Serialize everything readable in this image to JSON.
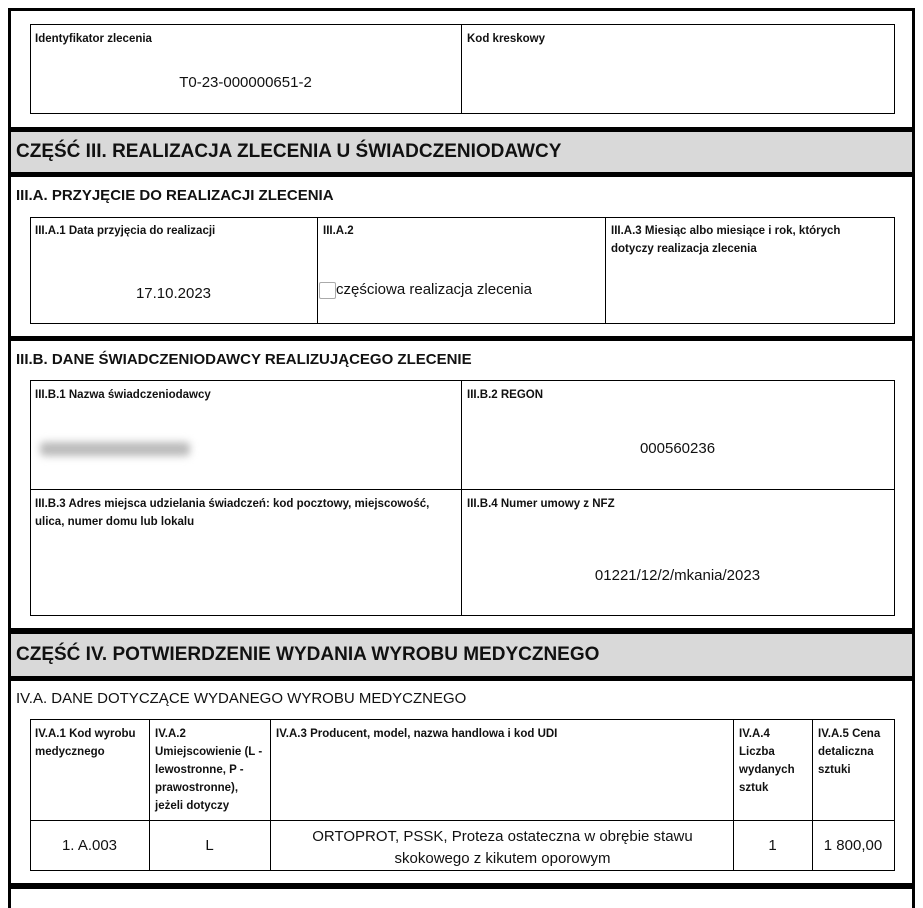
{
  "header_box": {
    "order_id_label": "Identyfikator zlecenia",
    "order_id_value": "T0-23-000000651-2",
    "barcode_label": "Kod kreskowy"
  },
  "part3": {
    "title": "CZĘŚĆ III. REALIZACJA ZLECENIA U ŚWIADCZENIODAWCY",
    "a": {
      "title": "III.A. PRZYJĘCIE DO REALIZACJI ZLECENIA",
      "a1_label": "III.A.1 Data przyjęcia do realizacji",
      "a1_value": "17.10.2023",
      "a2_label": "III.A.2",
      "a2_checkbox_label": "częściowa realizacja zlecenia",
      "a2_checked": false,
      "a3_label": "III.A.3 Miesiąc albo miesiące i rok, których dotyczy realizacja zlecenia"
    },
    "b": {
      "title": "III.B. DANE ŚWIADCZENIODAWCY REALIZUJĄCEGO ZLECENIE",
      "b1_label": "III.B.1 Nazwa świadczeniodawcy",
      "b2_label": "III.B.2 REGON",
      "b2_value": "000560236",
      "b3_label": "III.B.3 Adres miejsca udzielania świadczeń: kod pocztowy, miejscowość, ulica, numer domu lub lokalu",
      "b4_label": "III.B.4 Numer umowy z NFZ",
      "b4_value": "01221/12/2/mkania/2023"
    }
  },
  "part4": {
    "title": "CZĘŚĆ IV. POTWIERDZENIE WYDANIA WYROBU MEDYCZNEGO",
    "a": {
      "title": "IV.A. DANE DOTYCZĄCE WYDANEGO WYROBU MEDYCZNEGO",
      "columns": [
        "IV.A.1 Kod wyrobu medycznego",
        "IV.A.2 Umiejscowienie (L - lewostronne, P - prawostronne), jeżeli dotyczy",
        "IV.A.3 Producent, model, nazwa handlowa i kod UDI",
        "IV.A.4 Liczba wydanych sztuk",
        "IV.A.5 Cena detaliczna sztuki"
      ],
      "rows": [
        [
          "1. A.003",
          "L",
          "ORTOPROT, PSSK, Proteza ostateczna w obrębie stawu skokowego z kikutem oporowym",
          "1",
          "1 800,00"
        ]
      ]
    }
  }
}
